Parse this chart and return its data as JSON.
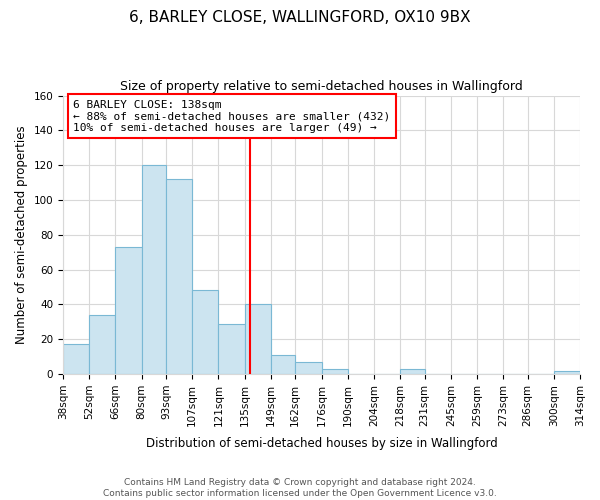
{
  "title": "6, BARLEY CLOSE, WALLINGFORD, OX10 9BX",
  "subtitle": "Size of property relative to semi-detached houses in Wallingford",
  "xlabel": "Distribution of semi-detached houses by size in Wallingford",
  "ylabel": "Number of semi-detached properties",
  "bar_heights": [
    17,
    34,
    73,
    120,
    112,
    48,
    29,
    40,
    11,
    7,
    3,
    0,
    0,
    3,
    0,
    0,
    0,
    0,
    0,
    2
  ],
  "bin_edges": [
    38,
    52,
    66,
    80,
    93,
    107,
    121,
    135,
    149,
    162,
    176,
    190,
    204,
    218,
    231,
    245,
    259,
    273,
    286,
    300,
    314
  ],
  "tick_labels": [
    "38sqm",
    "52sqm",
    "66sqm",
    "80sqm",
    "93sqm",
    "107sqm",
    "121sqm",
    "135sqm",
    "149sqm",
    "162sqm",
    "176sqm",
    "190sqm",
    "204sqm",
    "218sqm",
    "231sqm",
    "245sqm",
    "259sqm",
    "273sqm",
    "286sqm",
    "300sqm",
    "314sqm"
  ],
  "bar_color": "#cce4f0",
  "bar_edgecolor": "#7ab8d4",
  "vline_x": 138,
  "vline_color": "red",
  "annotation_title": "6 BARLEY CLOSE: 138sqm",
  "annotation_line1": "← 88% of semi-detached houses are smaller (432)",
  "annotation_line2": "10% of semi-detached houses are larger (49) →",
  "annotation_box_color": "#ffffff",
  "annotation_box_edgecolor": "red",
  "ylim": [
    0,
    160
  ],
  "yticks": [
    0,
    20,
    40,
    60,
    80,
    100,
    120,
    140,
    160
  ],
  "footer_line1": "Contains HM Land Registry data © Crown copyright and database right 2024.",
  "footer_line2": "Contains public sector information licensed under the Open Government Licence v3.0.",
  "background_color": "#ffffff",
  "grid_color": "#d8d8d8",
  "title_fontsize": 11,
  "subtitle_fontsize": 9,
  "axis_label_fontsize": 8.5,
  "tick_fontsize": 7.5,
  "annotation_fontsize": 8,
  "footer_fontsize": 6.5
}
